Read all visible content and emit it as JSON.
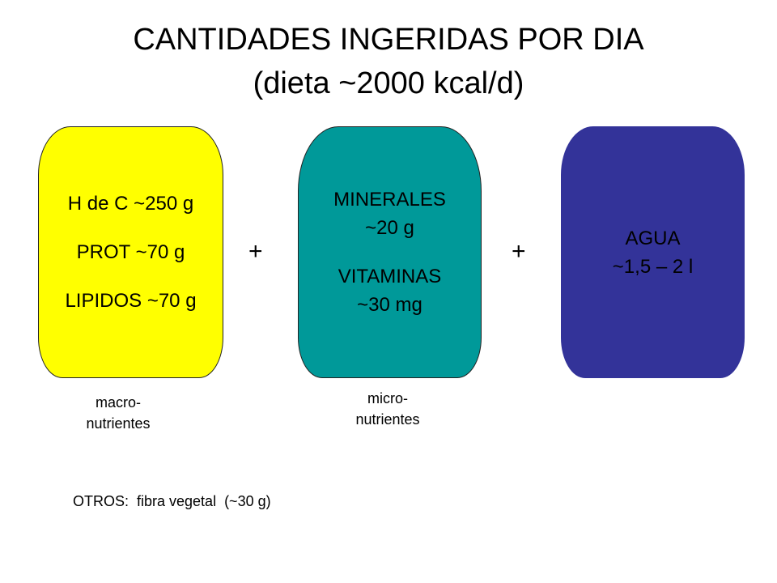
{
  "title": {
    "line1": "CANTIDADES INGERIDAS POR DIA",
    "line2": "(dieta ~2000 kcal/d)"
  },
  "boxes": {
    "macro": {
      "lines": [
        "H de C ~250 g",
        "PROT ~70 g",
        "LIPIDOS ~70 g"
      ],
      "color": "#ffff00",
      "caption": [
        "macro-",
        "nutrientes"
      ]
    },
    "micro": {
      "lines": [
        "MINERALES",
        "~20 g",
        "VITAMINAS",
        "~30 mg"
      ],
      "color": "#009999",
      "caption": [
        "micro-",
        "nutrientes"
      ]
    },
    "water": {
      "lines": [
        "AGUA",
        "~1,5 – 2 l"
      ],
      "color": "#333399"
    }
  },
  "operators": [
    "+",
    "+"
  ],
  "footer": "OTROS:  fibra vegetal  (~30 g)"
}
